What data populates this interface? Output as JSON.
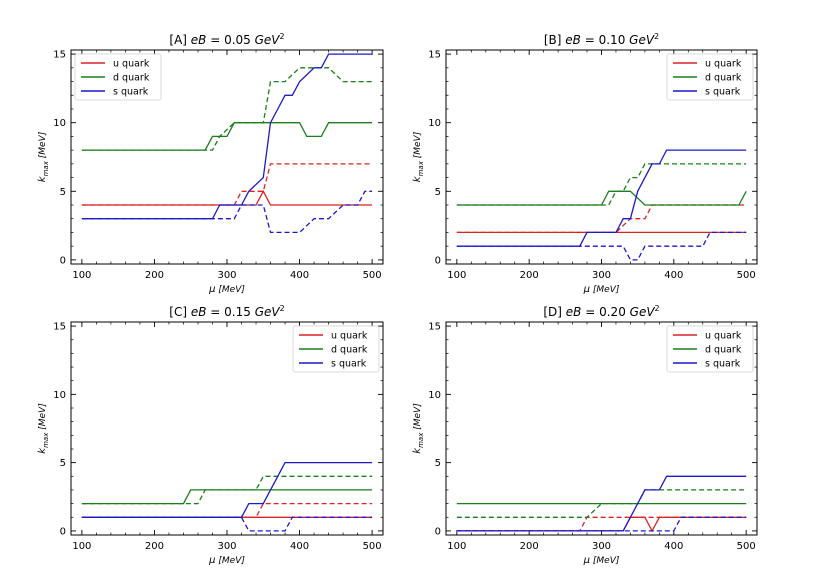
{
  "colors": {
    "u": "#dd2222",
    "d": "#1a7f1a",
    "s": "#1a1acc"
  },
  "legend_labels": {
    "u": "u quark",
    "d": "d quark",
    "s": "s quark"
  },
  "chart_data": [
    {
      "type": "line",
      "title_prefix": "[A] ",
      "title_italic": "eB",
      "title_value": " = 0.05 ",
      "title_unit": "GeV",
      "title_sup": "2",
      "xlabel_italic": "μ",
      "xlabel_unit": " [MeV]",
      "ylabel_italic": "k",
      "ylabel_sub": "max",
      "ylabel_unit": " [MeV]",
      "xlim": [
        85,
        515
      ],
      "ylim": [
        -0.3,
        15.3
      ],
      "xticks": [
        100,
        200,
        300,
        400,
        500
      ],
      "yticks": [
        0,
        5,
        10,
        15
      ],
      "legend_position": "top-left",
      "series": [
        {
          "name": "u quark",
          "quark": "u",
          "style": "solid",
          "points": [
            [
              100,
              4
            ],
            [
              340,
              4
            ],
            [
              350,
              5
            ],
            [
              360,
              4
            ],
            [
              500,
              4
            ]
          ]
        },
        {
          "name": "u quark",
          "quark": "u",
          "style": "dashed",
          "points": [
            [
              100,
              4
            ],
            [
              310,
              4
            ],
            [
              320,
              5
            ],
            [
              350,
              5
            ],
            [
              360,
              7
            ],
            [
              500,
              7
            ]
          ]
        },
        {
          "name": "d quark",
          "quark": "d",
          "style": "solid",
          "points": [
            [
              100,
              8
            ],
            [
              270,
              8
            ],
            [
              280,
              9
            ],
            [
              300,
              9
            ],
            [
              310,
              10
            ],
            [
              400,
              10
            ],
            [
              410,
              9
            ],
            [
              430,
              9
            ],
            [
              440,
              10
            ],
            [
              500,
              10
            ]
          ]
        },
        {
          "name": "d quark",
          "quark": "d",
          "style": "dashed",
          "points": [
            [
              100,
              8
            ],
            [
              260,
              8
            ],
            [
              280,
              8
            ],
            [
              290,
              9
            ],
            [
              310,
              10
            ],
            [
              350,
              10
            ],
            [
              360,
              13
            ],
            [
              380,
              13
            ],
            [
              400,
              14
            ],
            [
              440,
              14
            ],
            [
              460,
              13
            ],
            [
              500,
              13
            ]
          ]
        },
        {
          "name": "s quark",
          "quark": "s",
          "style": "solid",
          "points": [
            [
              100,
              3
            ],
            [
              280,
              3
            ],
            [
              290,
              4
            ],
            [
              320,
              4
            ],
            [
              330,
              5
            ],
            [
              350,
              6
            ],
            [
              360,
              10
            ],
            [
              370,
              11
            ],
            [
              380,
              12
            ],
            [
              390,
              12
            ],
            [
              400,
              13
            ],
            [
              420,
              14
            ],
            [
              430,
              14
            ],
            [
              440,
              15
            ],
            [
              500,
              15
            ]
          ]
        },
        {
          "name": "s quark",
          "quark": "s",
          "style": "dashed",
          "points": [
            [
              100,
              3
            ],
            [
              310,
              3
            ],
            [
              320,
              4
            ],
            [
              350,
              4
            ],
            [
              360,
              2
            ],
            [
              400,
              2
            ],
            [
              420,
              3
            ],
            [
              440,
              3
            ],
            [
              460,
              4
            ],
            [
              480,
              4
            ],
            [
              490,
              5
            ],
            [
              500,
              5
            ]
          ]
        }
      ]
    },
    {
      "type": "line",
      "title_prefix": "[B] ",
      "title_italic": "eB",
      "title_value": " = 0.10 ",
      "title_unit": "GeV",
      "title_sup": "2",
      "xlabel_italic": "μ",
      "xlabel_unit": " [MeV]",
      "ylabel_italic": "k",
      "ylabel_sub": "max",
      "ylabel_unit": " [MeV]",
      "xlim": [
        85,
        515
      ],
      "ylim": [
        -0.3,
        15.3
      ],
      "xticks": [
        100,
        200,
        300,
        400,
        500
      ],
      "yticks": [
        0,
        5,
        10,
        15
      ],
      "legend_position": "top-right",
      "series": [
        {
          "name": "u quark",
          "quark": "u",
          "style": "solid",
          "points": [
            [
              100,
              2
            ],
            [
              500,
              2
            ]
          ]
        },
        {
          "name": "u quark",
          "quark": "u",
          "style": "dashed",
          "points": [
            [
              100,
              2
            ],
            [
              320,
              2
            ],
            [
              340,
              3
            ],
            [
              360,
              3
            ],
            [
              370,
              4
            ],
            [
              500,
              4
            ]
          ]
        },
        {
          "name": "d quark",
          "quark": "d",
          "style": "solid",
          "points": [
            [
              100,
              4
            ],
            [
              300,
              4
            ],
            [
              310,
              5
            ],
            [
              340,
              5
            ],
            [
              360,
              4
            ],
            [
              490,
              4
            ],
            [
              500,
              5
            ]
          ]
        },
        {
          "name": "d quark",
          "quark": "d",
          "style": "dashed",
          "points": [
            [
              100,
              4
            ],
            [
              310,
              4
            ],
            [
              320,
              5
            ],
            [
              330,
              5
            ],
            [
              340,
              6
            ],
            [
              350,
              6
            ],
            [
              360,
              7
            ],
            [
              500,
              7
            ]
          ]
        },
        {
          "name": "s quark",
          "quark": "s",
          "style": "solid",
          "points": [
            [
              100,
              1
            ],
            [
              270,
              1
            ],
            [
              280,
              2
            ],
            [
              320,
              2
            ],
            [
              330,
              3
            ],
            [
              340,
              3
            ],
            [
              350,
              5
            ],
            [
              360,
              6
            ],
            [
              370,
              7
            ],
            [
              380,
              7
            ],
            [
              390,
              8
            ],
            [
              500,
              8
            ]
          ]
        },
        {
          "name": "s quark",
          "quark": "s",
          "style": "dashed",
          "points": [
            [
              100,
              1
            ],
            [
              320,
              1
            ],
            [
              330,
              1
            ],
            [
              340,
              0
            ],
            [
              350,
              0
            ],
            [
              360,
              1
            ],
            [
              400,
              1
            ],
            [
              440,
              1
            ],
            [
              450,
              2
            ],
            [
              500,
              2
            ]
          ]
        }
      ]
    },
    {
      "type": "line",
      "title_prefix": "[C] ",
      "title_italic": "eB",
      "title_value": " = 0.15 ",
      "title_unit": "GeV",
      "title_sup": "2",
      "xlabel_italic": "μ",
      "xlabel_unit": " [MeV]",
      "ylabel_italic": "k",
      "ylabel_sub": "max",
      "ylabel_unit": " [MeV]",
      "xlim": [
        85,
        515
      ],
      "ylim": [
        -0.3,
        15.3
      ],
      "xticks": [
        100,
        200,
        300,
        400,
        500
      ],
      "yticks": [
        0,
        5,
        10,
        15
      ],
      "legend_position": "top-right",
      "series": [
        {
          "name": "u quark",
          "quark": "u",
          "style": "solid",
          "points": [
            [
              100,
              1
            ],
            [
              500,
              1
            ]
          ]
        },
        {
          "name": "u quark",
          "quark": "u",
          "style": "dashed",
          "points": [
            [
              100,
              1
            ],
            [
              340,
              1
            ],
            [
              350,
              2
            ],
            [
              500,
              2
            ]
          ]
        },
        {
          "name": "d quark",
          "quark": "d",
          "style": "solid",
          "points": [
            [
              100,
              2
            ],
            [
              240,
              2
            ],
            [
              250,
              3
            ],
            [
              500,
              3
            ]
          ]
        },
        {
          "name": "d quark",
          "quark": "d",
          "style": "dashed",
          "points": [
            [
              100,
              2
            ],
            [
              260,
              2
            ],
            [
              270,
              3
            ],
            [
              340,
              3
            ],
            [
              350,
              4
            ],
            [
              500,
              4
            ]
          ]
        },
        {
          "name": "s quark",
          "quark": "s",
          "style": "solid",
          "points": [
            [
              100,
              1
            ],
            [
              320,
              1
            ],
            [
              330,
              2
            ],
            [
              350,
              2
            ],
            [
              360,
              3
            ],
            [
              370,
              4
            ],
            [
              380,
              5
            ],
            [
              500,
              5
            ]
          ]
        },
        {
          "name": "s quark",
          "quark": "s",
          "style": "dashed",
          "points": [
            [
              100,
              1
            ],
            [
              320,
              1
            ],
            [
              330,
              0
            ],
            [
              380,
              0
            ],
            [
              390,
              1
            ],
            [
              500,
              1
            ]
          ]
        }
      ]
    },
    {
      "type": "line",
      "title_prefix": "[D] ",
      "title_italic": "eB",
      "title_value": " = 0.20 ",
      "title_unit": "GeV",
      "title_sup": "2",
      "xlabel_italic": "μ",
      "xlabel_unit": " [MeV]",
      "ylabel_italic": "k",
      "ylabel_sub": "max",
      "ylabel_unit": " [MeV]",
      "xlim": [
        85,
        515
      ],
      "ylim": [
        -0.3,
        15.3
      ],
      "xticks": [
        100,
        200,
        300,
        400,
        500
      ],
      "yticks": [
        0,
        5,
        10,
        15
      ],
      "legend_position": "top-right",
      "series": [
        {
          "name": "u quark",
          "quark": "u",
          "style": "solid",
          "points": [
            [
              100,
              0
            ],
            [
              330,
              0
            ],
            [
              340,
              1
            ],
            [
              360,
              1
            ],
            [
              370,
              0
            ],
            [
              380,
              1
            ],
            [
              500,
              1
            ]
          ]
        },
        {
          "name": "u quark",
          "quark": "u",
          "style": "dashed",
          "points": [
            [
              100,
              0
            ],
            [
              270,
              0
            ],
            [
              280,
              1
            ],
            [
              500,
              1
            ]
          ]
        },
        {
          "name": "d quark",
          "quark": "d",
          "style": "solid",
          "points": [
            [
              100,
              2
            ],
            [
              500,
              2
            ]
          ]
        },
        {
          "name": "d quark",
          "quark": "d",
          "style": "dashed",
          "points": [
            [
              100,
              1
            ],
            [
              280,
              1
            ],
            [
              300,
              2
            ],
            [
              350,
              2
            ],
            [
              360,
              3
            ],
            [
              500,
              3
            ]
          ]
        },
        {
          "name": "s quark",
          "quark": "s",
          "style": "solid",
          "points": [
            [
              100,
              0
            ],
            [
              330,
              0
            ],
            [
              340,
              1
            ],
            [
              350,
              2
            ],
            [
              360,
              3
            ],
            [
              380,
              3
            ],
            [
              390,
              4
            ],
            [
              500,
              4
            ]
          ]
        },
        {
          "name": "s quark",
          "quark": "s",
          "style": "dashed",
          "points": [
            [
              100,
              0
            ],
            [
              400,
              0
            ],
            [
              410,
              1
            ],
            [
              500,
              1
            ]
          ]
        }
      ]
    }
  ]
}
